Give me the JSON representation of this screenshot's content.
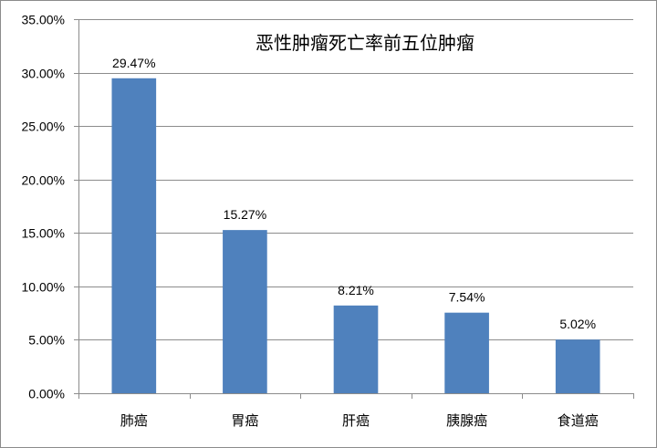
{
  "chart_data": {
    "type": "bar",
    "title": "恶性肿瘤死亡率前五位肿瘤",
    "categories": [
      "肺癌",
      "胃癌",
      "肝癌",
      "胰腺癌",
      "食道癌"
    ],
    "values": [
      29.47,
      15.27,
      8.21,
      7.54,
      5.02
    ],
    "data_labels": [
      "29.47%",
      "15.27%",
      "8.21%",
      "7.54%",
      "5.02%"
    ],
    "y_ticks": [
      0,
      5,
      10,
      15,
      20,
      25,
      30,
      35
    ],
    "y_tick_labels": [
      "0.00%",
      "5.00%",
      "10.00%",
      "15.00%",
      "20.00%",
      "25.00%",
      "30.00%",
      "35.00%"
    ],
    "ylim": [
      0,
      35
    ],
    "grid": true,
    "legend": "none",
    "bar_color": "#4f81bd",
    "grid_color": "#8c8c8c"
  }
}
